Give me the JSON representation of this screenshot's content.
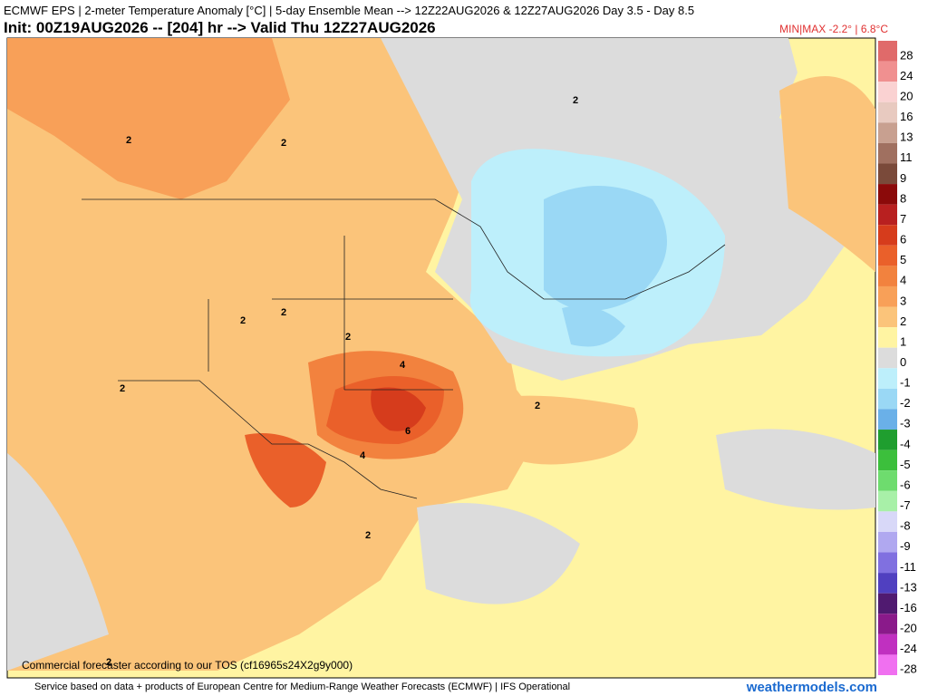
{
  "header": {
    "line1": "ECMWF EPS | 2-meter Temperature Anomaly [°C] | 5-day Ensemble Mean --> 12Z22AUG2026 & 12Z27AUG2026  Day 3.5 - Day 8.5",
    "line2": "Init: 00Z19AUG2026 -- [204] hr --> Valid Thu 12Z27AUG2026",
    "minmax": "MIN|MAX -2.2° | 6.8°C"
  },
  "colorbar": [
    {
      "value": 28,
      "color": "#e06a6a"
    },
    {
      "value": 24,
      "color": "#f09090"
    },
    {
      "value": 20,
      "color": "#fad2d2"
    },
    {
      "value": 16,
      "color": "#e8cac0"
    },
    {
      "value": 13,
      "color": "#c8a090"
    },
    {
      "value": 11,
      "color": "#a07060"
    },
    {
      "value": 9,
      "color": "#7a4a3a"
    },
    {
      "value": 8,
      "color": "#8b0a0a"
    },
    {
      "value": 7,
      "color": "#b82020"
    },
    {
      "value": 6,
      "color": "#d63c1c"
    },
    {
      "value": 5,
      "color": "#ea602a"
    },
    {
      "value": 4,
      "color": "#f2823e"
    },
    {
      "value": 3,
      "color": "#f8a058"
    },
    {
      "value": 2,
      "color": "#fbc47a"
    },
    {
      "value": 1,
      "color": "#fff4a2"
    },
    {
      "value": 0,
      "color": "#dcdcdc"
    },
    {
      "value": -1,
      "color": "#bdeffb"
    },
    {
      "value": -2,
      "color": "#9ad8f5"
    },
    {
      "value": -3,
      "color": "#6ab0e8"
    },
    {
      "value": -4,
      "color": "#1f9e2f"
    },
    {
      "value": -5,
      "color": "#3cbf3c"
    },
    {
      "value": -6,
      "color": "#6edc6e"
    },
    {
      "value": -7,
      "color": "#a8f0a8"
    },
    {
      "value": -8,
      "color": "#d8d8f8"
    },
    {
      "value": -9,
      "color": "#b0a8f0"
    },
    {
      "value": -11,
      "color": "#8070e0"
    },
    {
      "value": -13,
      "color": "#5040c0"
    },
    {
      "value": -16,
      "color": "#501a70"
    },
    {
      "value": -20,
      "color": "#8a1a8a"
    },
    {
      "value": -24,
      "color": "#c030c0"
    },
    {
      "value": -28,
      "color": "#f070f0"
    }
  ],
  "contour_labels": [
    2,
    2,
    2,
    2,
    2,
    2,
    2,
    4,
    6,
    4,
    2,
    2,
    2
  ],
  "note": "Commercial forecaster according to our TOS (cf16965s24X2g9y000)",
  "footer": {
    "credit": "Service based on data + products of European Centre for Medium-Range Weather Forecasts (ECMWF) | IFS Operational",
    "brand": "weathermodels.com"
  }
}
